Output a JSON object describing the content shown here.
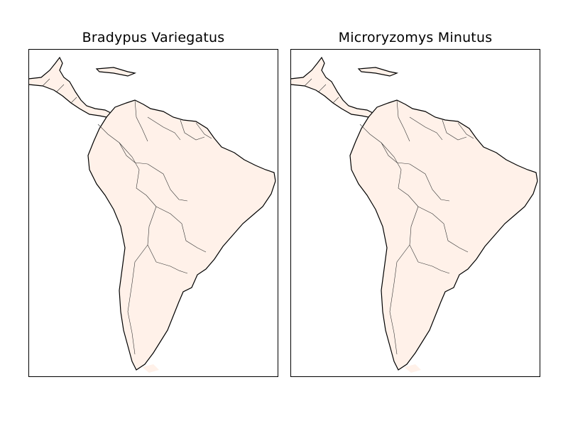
{
  "panels": [
    {
      "title": "Bradypus Variegatus"
    },
    {
      "title": "Microryzomys Minutus"
    }
  ],
  "colors": {
    "background": "#ffffff",
    "land_base": "#fff1e9",
    "density_scale": [
      "#fff1e9",
      "#fcbba1",
      "#fb6a4a",
      "#de2d26",
      "#a50f15",
      "#67000d"
    ],
    "coastline": "#000000",
    "border": "#333333"
  }
}
